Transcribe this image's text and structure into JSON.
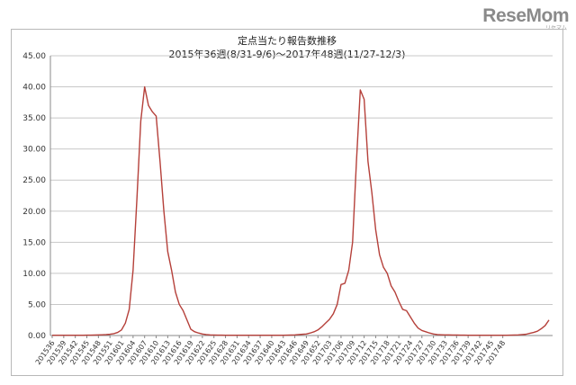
{
  "watermark": {
    "brand": "ReseMom",
    "sub": "リセマム"
  },
  "chart_data": {
    "type": "line",
    "title": "定点当たり報告数推移",
    "subtitle": "2015年36週(8/31-9/6)～2017年48週(11/27-12/3)",
    "xlabel": "",
    "ylabel": "",
    "ylim": [
      0,
      45
    ],
    "yticks": [
      "0.00",
      "5.00",
      "10.00",
      "15.00",
      "20.00",
      "25.00",
      "30.00",
      "35.00",
      "40.00",
      "45.00"
    ],
    "grid": "horizontal",
    "legend": "none",
    "line_color": "#b5403a",
    "x_tick_labels": [
      "201536",
      "201539",
      "201542",
      "201545",
      "201548",
      "201551",
      "201601",
      "201604",
      "201607",
      "201610",
      "201613",
      "201616",
      "201619",
      "201622",
      "201625",
      "201628",
      "201631",
      "201634",
      "201637",
      "201640",
      "201643",
      "201646",
      "201649",
      "201652",
      "201703",
      "201706",
      "201709",
      "201712",
      "201715",
      "201718",
      "201721",
      "201724",
      "201727",
      "201730",
      "201733",
      "201736",
      "201739",
      "201742",
      "201745",
      "201748"
    ],
    "series": [
      {
        "values": [
          0.05,
          0.05,
          0.05,
          0.05,
          0.05,
          0.05,
          0.05,
          0.05,
          0.05,
          0.06,
          0.07,
          0.08,
          0.1,
          0.12,
          0.15,
          0.2,
          0.3,
          0.5,
          0.9,
          2.0,
          4.2,
          10.5,
          22.0,
          34.5,
          40.0,
          37.0,
          36.0,
          35.3,
          28.0,
          20.0,
          13.5,
          10.5,
          7.0,
          5.0,
          4.0,
          2.5,
          1.0,
          0.6,
          0.4,
          0.25,
          0.15,
          0.1,
          0.08,
          0.07,
          0.06,
          0.05,
          0.05,
          0.05,
          0.05,
          0.05,
          0.05,
          0.05,
          0.05,
          0.05,
          0.05,
          0.05,
          0.05,
          0.05,
          0.05,
          0.05,
          0.05,
          0.06,
          0.08,
          0.1,
          0.15,
          0.2,
          0.25,
          0.4,
          0.6,
          0.9,
          1.4,
          2.0,
          2.6,
          3.5,
          5.0,
          8.2,
          8.4,
          10.5,
          15.0,
          28.0,
          39.5,
          38.0,
          28.0,
          23.0,
          17.0,
          13.0,
          11.0,
          10.0,
          8.0,
          7.0,
          5.5,
          4.2,
          4.0,
          3.0,
          2.0,
          1.2,
          0.8,
          0.6,
          0.4,
          0.25,
          0.15,
          0.12,
          0.1,
          0.1,
          0.08,
          0.08,
          0.06,
          0.06,
          0.05,
          0.05,
          0.05,
          0.05,
          0.05,
          0.05,
          0.05,
          0.05,
          0.05,
          0.05,
          0.05,
          0.06,
          0.08,
          0.1,
          0.15,
          0.2,
          0.35,
          0.5,
          0.7,
          1.1,
          1.6,
          2.5
        ]
      }
    ]
  }
}
